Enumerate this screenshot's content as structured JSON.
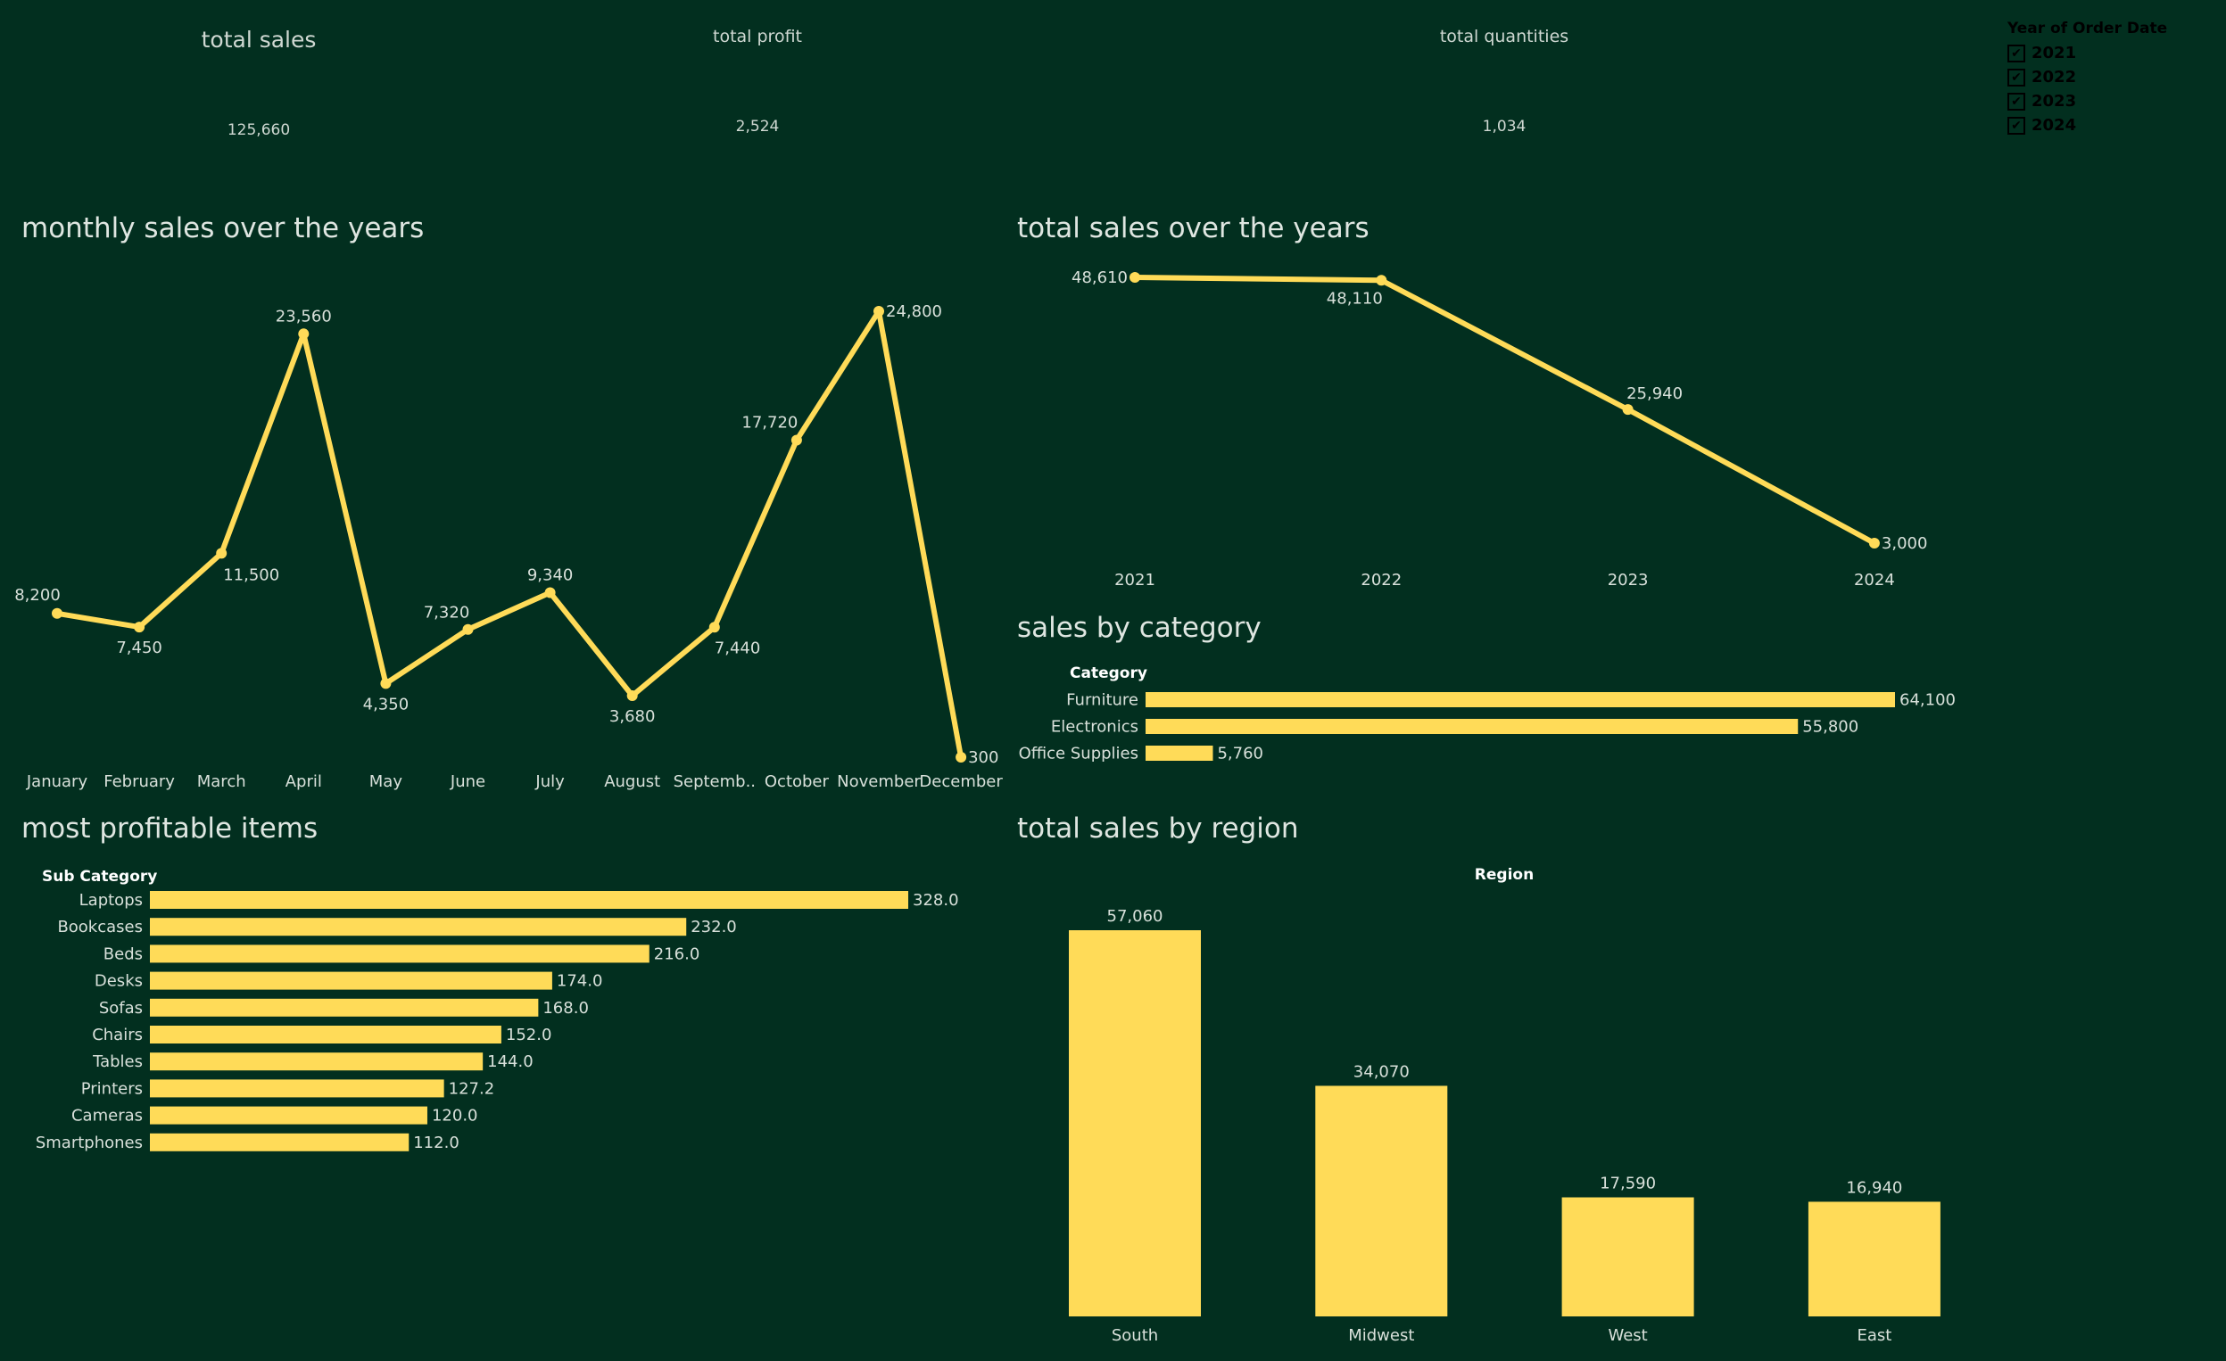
{
  "kpis": {
    "sales_title": "total sales",
    "sales_value": "125,660",
    "profit_title": "total profit",
    "profit_value": "2,524",
    "quantity_title": "total quantities",
    "quantity_value": "1,034"
  },
  "filter": {
    "title": "Year of Order Date",
    "items": [
      {
        "label": "2021",
        "checked": true
      },
      {
        "label": "2022",
        "checked": true
      },
      {
        "label": "2023",
        "checked": true
      },
      {
        "label": "2024",
        "checked": true
      }
    ]
  },
  "colors": {
    "background": "#022f1f",
    "accent": "#ffdb58",
    "text": "#d8e0da"
  },
  "chart_data": [
    {
      "type": "line",
      "title": "monthly sales over the years",
      "categories": [
        "January",
        "February",
        "March",
        "April",
        "May",
        "June",
        "July",
        "August",
        "Septemb..",
        "October",
        "November",
        "December"
      ],
      "values": [
        8200,
        7450,
        11500,
        23560,
        4350,
        7320,
        9340,
        3680,
        7440,
        17720,
        24800,
        300
      ],
      "labels": [
        "8,200",
        "7,450",
        "11,500",
        "23,560",
        "4,350",
        "7,320",
        "9,340",
        "3,680",
        "7,440",
        "17,720",
        "24,800",
        "300"
      ],
      "ylim": [
        300,
        24800
      ]
    },
    {
      "type": "line",
      "title": "total sales over the years",
      "categories": [
        "2021",
        "2022",
        "2023",
        "2024"
      ],
      "values": [
        48610,
        48110,
        25940,
        3000
      ],
      "labels": [
        "48,610",
        "48,110",
        "25,940",
        "3,000"
      ],
      "ylim": [
        3000,
        48610
      ]
    },
    {
      "type": "bar",
      "orientation": "horizontal",
      "title": "sales by category",
      "header": "Category",
      "categories": [
        "Furniture",
        "Electronics",
        "Office Supplies"
      ],
      "values": [
        64100,
        55800,
        5760
      ],
      "labels": [
        "64,100",
        "55,800",
        "5,760"
      ]
    },
    {
      "type": "bar",
      "orientation": "horizontal",
      "title": "most profitable items",
      "header": "Sub Category",
      "categories": [
        "Laptops",
        "Bookcases",
        "Beds",
        "Desks",
        "Sofas",
        "Chairs",
        "Tables",
        "Printers",
        "Cameras",
        "Smartphones"
      ],
      "values": [
        328.0,
        232.0,
        216.0,
        174.0,
        168.0,
        152.0,
        144.0,
        127.2,
        120.0,
        112.0
      ],
      "labels": [
        "328.0",
        "232.0",
        "216.0",
        "174.0",
        "168.0",
        "152.0",
        "144.0",
        "127.2",
        "120.0",
        "112.0"
      ]
    },
    {
      "type": "bar",
      "orientation": "vertical",
      "title": "total sales by region",
      "header": "Region",
      "categories": [
        "South",
        "Midwest",
        "West",
        "East"
      ],
      "values": [
        57060,
        34070,
        17590,
        16940
      ],
      "labels": [
        "57,060",
        "34,070",
        "17,590",
        "16,940"
      ]
    }
  ]
}
